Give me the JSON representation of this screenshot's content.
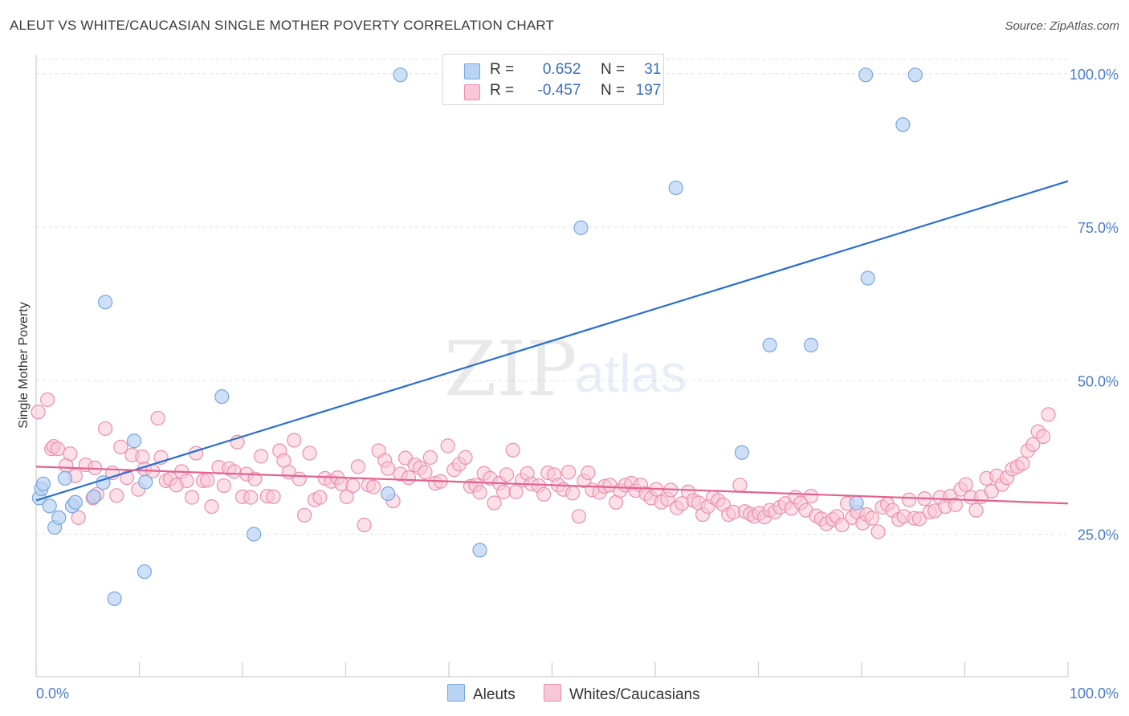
{
  "title": "ALEUT VS WHITE/CAUCASIAN SINGLE MOTHER POVERTY CORRELATION CHART",
  "source": "Source: ZipAtlas.com",
  "watermark": {
    "zip": "ZIP",
    "atlas": "atlas"
  },
  "colors": {
    "aleut_fill": "#b9d3f3",
    "aleut_stroke": "#7aa6de",
    "aleut_line": "#2a6fcf",
    "white_fill": "#f8c6d6",
    "white_stroke": "#eb8fae",
    "white_line": "#e2628f",
    "tick_text": "#4a7cc9"
  },
  "legend": {
    "rows": [
      {
        "r_label": "R =",
        "r_value": "0.652",
        "n_label": "N =",
        "n_value": "31"
      },
      {
        "r_label": "R =",
        "r_value": "-0.457",
        "n_label": "N =",
        "n_value": "197"
      }
    ]
  },
  "bottom_legend": {
    "aleut": "Aleuts",
    "white": "Whites/Caucasians"
  },
  "chart_data": {
    "type": "scatter",
    "title": "ALEUT VS WHITE/CAUCASIAN SINGLE MOTHER POVERTY CORRELATION CHART",
    "xlabel": "",
    "ylabel": "Single Mother Poverty",
    "xlim": [
      0,
      100
    ],
    "ylim": [
      0,
      105
    ],
    "x_tick_labels": [
      "0.0%",
      "100.0%"
    ],
    "y_ticks": [
      25,
      50,
      75,
      100
    ],
    "y_tick_labels": [
      "25.0%",
      "50.0%",
      "75.0%",
      "100.0%"
    ],
    "grid": true,
    "series": [
      {
        "name": "Aleuts",
        "color": "#b9d3f3",
        "trend": {
          "x": [
            0,
            100
          ],
          "y": [
            30.5,
            82.5
          ]
        },
        "points": [
          [
            0.3,
            30.9
          ],
          [
            0.5,
            32.4
          ],
          [
            0.7,
            33.2
          ],
          [
            1.3,
            29.6
          ],
          [
            1.8,
            26.1
          ],
          [
            2.2,
            27.7
          ],
          [
            2.8,
            34.1
          ],
          [
            3.5,
            29.6
          ],
          [
            3.8,
            30.2
          ],
          [
            5.6,
            31.1
          ],
          [
            6.5,
            33.4
          ],
          [
            6.7,
            62.8
          ],
          [
            7.6,
            14.5
          ],
          [
            9.5,
            40.2
          ],
          [
            10.5,
            18.9
          ],
          [
            10.6,
            33.5
          ],
          [
            18.0,
            47.4
          ],
          [
            21.1,
            25.0
          ],
          [
            34.1,
            31.6
          ],
          [
            35.3,
            99.8
          ],
          [
            43.0,
            22.4
          ],
          [
            52.8,
            74.9
          ],
          [
            62.0,
            81.4
          ],
          [
            68.4,
            38.3
          ],
          [
            71.1,
            55.8
          ],
          [
            75.1,
            55.8
          ],
          [
            79.5,
            30.1
          ],
          [
            80.4,
            99.8
          ],
          [
            80.6,
            66.7
          ],
          [
            84.0,
            91.7
          ],
          [
            85.2,
            99.8
          ]
        ]
      },
      {
        "name": "Whites/Caucasians",
        "color": "#f8c6d6",
        "trend": {
          "x": [
            0,
            100
          ],
          "y": [
            36.0,
            30.0
          ]
        },
        "points": [
          [
            0.2,
            44.9
          ],
          [
            1.1,
            46.9
          ],
          [
            1.5,
            38.9
          ],
          [
            1.7,
            39.3
          ],
          [
            2.1,
            38.9
          ],
          [
            2.9,
            36.2
          ],
          [
            3.3,
            38.1
          ],
          [
            3.8,
            34.5
          ],
          [
            4.1,
            27.7
          ],
          [
            4.8,
            36.3
          ],
          [
            5.5,
            30.9
          ],
          [
            5.7,
            35.8
          ],
          [
            5.9,
            31.5
          ],
          [
            6.7,
            42.2
          ],
          [
            7.4,
            35.0
          ],
          [
            7.8,
            31.3
          ],
          [
            8.2,
            39.2
          ],
          [
            8.8,
            34.2
          ],
          [
            9.3,
            37.9
          ],
          [
            9.9,
            32.3
          ],
          [
            10.3,
            37.6
          ],
          [
            10.5,
            35.6
          ],
          [
            11.3,
            35.3
          ],
          [
            11.8,
            43.9
          ],
          [
            12.1,
            37.5
          ],
          [
            12.6,
            33.7
          ],
          [
            13.0,
            34.0
          ],
          [
            13.6,
            33.0
          ],
          [
            14.1,
            35.2
          ],
          [
            14.6,
            33.7
          ],
          [
            15.1,
            31.0
          ],
          [
            15.5,
            38.2
          ],
          [
            16.2,
            33.7
          ],
          [
            16.6,
            33.8
          ],
          [
            17.0,
            29.5
          ],
          [
            17.7,
            35.9
          ],
          [
            18.2,
            32.9
          ],
          [
            18.7,
            35.7
          ],
          [
            19.2,
            35.2
          ],
          [
            19.5,
            40.0
          ],
          [
            20.0,
            31.1
          ],
          [
            20.4,
            34.8
          ],
          [
            20.8,
            31.0
          ],
          [
            21.2,
            34.0
          ],
          [
            21.8,
            37.7
          ],
          [
            22.4,
            31.2
          ],
          [
            23.0,
            31.1
          ],
          [
            23.6,
            38.6
          ],
          [
            24.0,
            37.0
          ],
          [
            24.5,
            35.1
          ],
          [
            25.0,
            40.3
          ],
          [
            25.5,
            34.0
          ],
          [
            26.0,
            28.1
          ],
          [
            26.5,
            38.2
          ],
          [
            27.0,
            30.6
          ],
          [
            27.5,
            31.0
          ],
          [
            28.0,
            34.1
          ],
          [
            28.6,
            33.6
          ],
          [
            29.2,
            34.2
          ],
          [
            29.6,
            33.2
          ],
          [
            30.1,
            31.1
          ],
          [
            30.7,
            32.9
          ],
          [
            31.2,
            36.0
          ],
          [
            31.8,
            26.5
          ],
          [
            32.2,
            33.0
          ],
          [
            32.7,
            32.7
          ],
          [
            33.2,
            38.6
          ],
          [
            33.8,
            37.0
          ],
          [
            34.1,
            35.7
          ],
          [
            34.6,
            30.4
          ],
          [
            35.3,
            34.8
          ],
          [
            35.8,
            37.4
          ],
          [
            36.1,
            34.2
          ],
          [
            36.7,
            36.3
          ],
          [
            37.2,
            35.8
          ],
          [
            37.7,
            35.1
          ],
          [
            38.2,
            37.5
          ],
          [
            38.7,
            33.3
          ],
          [
            39.2,
            33.6
          ],
          [
            39.9,
            39.4
          ],
          [
            40.5,
            35.5
          ],
          [
            41.0,
            36.4
          ],
          [
            41.6,
            37.5
          ],
          [
            42.1,
            32.8
          ],
          [
            42.6,
            33.0
          ],
          [
            43.0,
            31.8
          ],
          [
            43.4,
            34.9
          ],
          [
            44.0,
            34.1
          ],
          [
            44.4,
            30.1
          ],
          [
            44.9,
            33.3
          ],
          [
            45.3,
            31.9
          ],
          [
            45.6,
            34.7
          ],
          [
            46.2,
            38.7
          ],
          [
            46.5,
            31.9
          ],
          [
            47.1,
            33.8
          ],
          [
            47.6,
            34.9
          ],
          [
            48.0,
            33.2
          ],
          [
            48.7,
            32.9
          ],
          [
            49.2,
            31.5
          ],
          [
            49.6,
            35.0
          ],
          [
            50.2,
            34.7
          ],
          [
            50.6,
            33.0
          ],
          [
            51.1,
            32.3
          ],
          [
            51.6,
            35.1
          ],
          [
            52.0,
            31.7
          ],
          [
            52.6,
            27.9
          ],
          [
            53.1,
            33.7
          ],
          [
            53.5,
            35.0
          ],
          [
            53.9,
            32.2
          ],
          [
            54.6,
            31.8
          ],
          [
            55.1,
            32.8
          ],
          [
            55.6,
            33.0
          ],
          [
            56.2,
            30.2
          ],
          [
            56.6,
            32.1
          ],
          [
            57.1,
            33.0
          ],
          [
            57.7,
            33.3
          ],
          [
            58.1,
            32.1
          ],
          [
            58.6,
            33.0
          ],
          [
            59.1,
            31.6
          ],
          [
            59.6,
            30.9
          ],
          [
            60.1,
            32.3
          ],
          [
            60.6,
            30.2
          ],
          [
            61.2,
            30.7
          ],
          [
            61.5,
            32.2
          ],
          [
            62.1,
            29.3
          ],
          [
            62.6,
            30.0
          ],
          [
            63.2,
            31.9
          ],
          [
            63.7,
            30.5
          ],
          [
            64.2,
            30.1
          ],
          [
            64.6,
            28.2
          ],
          [
            65.1,
            29.5
          ],
          [
            65.6,
            31.0
          ],
          [
            66.1,
            30.5
          ],
          [
            66.6,
            29.8
          ],
          [
            67.1,
            28.2
          ],
          [
            67.6,
            28.6
          ],
          [
            68.2,
            33.0
          ],
          [
            68.7,
            28.7
          ],
          [
            69.2,
            28.3
          ],
          [
            69.6,
            27.9
          ],
          [
            70.1,
            28.4
          ],
          [
            70.6,
            27.8
          ],
          [
            71.1,
            28.9
          ],
          [
            71.6,
            28.6
          ],
          [
            72.1,
            29.4
          ],
          [
            72.6,
            30.0
          ],
          [
            73.2,
            29.2
          ],
          [
            73.6,
            31.0
          ],
          [
            74.1,
            30.1
          ],
          [
            74.6,
            28.9
          ],
          [
            75.1,
            31.2
          ],
          [
            75.6,
            28.0
          ],
          [
            76.1,
            27.5
          ],
          [
            76.6,
            26.7
          ],
          [
            77.2,
            27.4
          ],
          [
            77.6,
            27.9
          ],
          [
            78.1,
            26.5
          ],
          [
            78.6,
            30.0
          ],
          [
            79.1,
            27.7
          ],
          [
            79.6,
            28.6
          ],
          [
            80.1,
            26.8
          ],
          [
            80.5,
            28.2
          ],
          [
            81.0,
            27.6
          ],
          [
            81.6,
            25.4
          ],
          [
            82.0,
            29.4
          ],
          [
            82.5,
            29.9
          ],
          [
            83.0,
            28.9
          ],
          [
            83.6,
            27.4
          ],
          [
            84.1,
            27.9
          ],
          [
            84.6,
            30.6
          ],
          [
            85.1,
            27.6
          ],
          [
            85.6,
            27.5
          ],
          [
            86.1,
            30.8
          ],
          [
            86.6,
            28.6
          ],
          [
            87.1,
            28.8
          ],
          [
            87.6,
            31.0
          ],
          [
            88.1,
            29.5
          ],
          [
            88.6,
            31.2
          ],
          [
            89.1,
            29.8
          ],
          [
            89.6,
            32.3
          ],
          [
            90.1,
            33.1
          ],
          [
            90.6,
            31.0
          ],
          [
            91.1,
            28.9
          ],
          [
            91.6,
            31.1
          ],
          [
            92.1,
            34.1
          ],
          [
            92.6,
            32.0
          ],
          [
            93.1,
            34.5
          ],
          [
            93.6,
            33.1
          ],
          [
            94.1,
            34.2
          ],
          [
            94.6,
            35.6
          ],
          [
            95.1,
            36.0
          ],
          [
            95.6,
            36.5
          ],
          [
            96.1,
            38.6
          ],
          [
            96.6,
            39.6
          ],
          [
            97.1,
            41.7
          ],
          [
            97.6,
            40.9
          ],
          [
            98.1,
            44.5
          ]
        ]
      }
    ]
  }
}
